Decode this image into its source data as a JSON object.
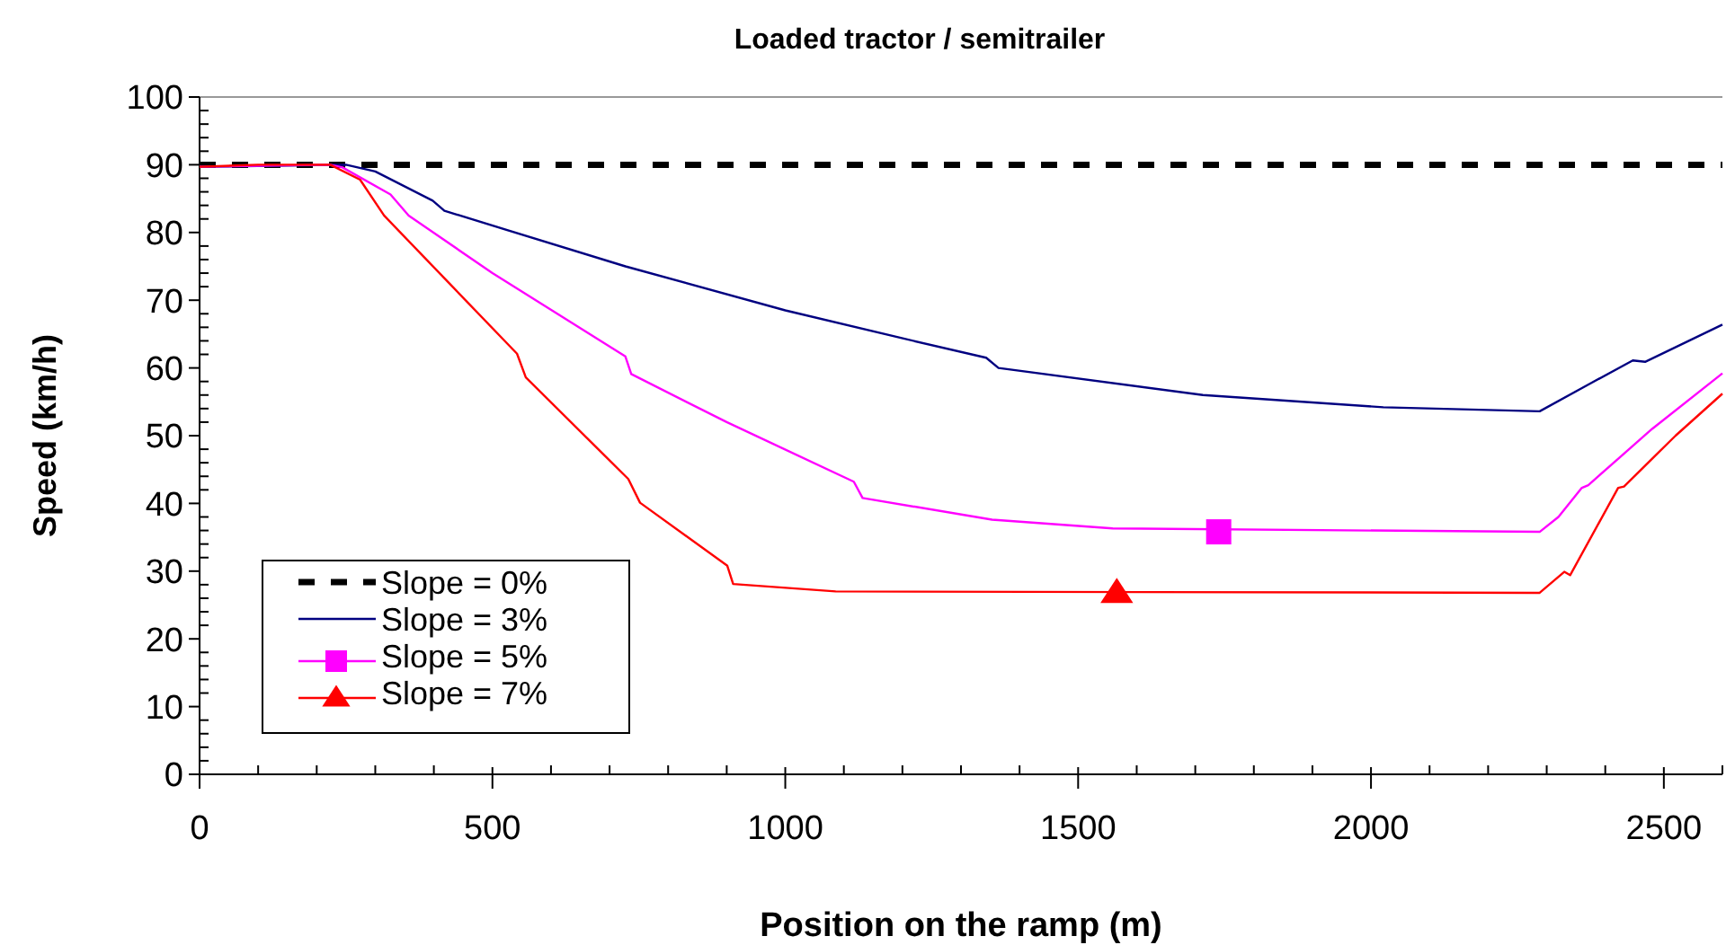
{
  "chart_data": {
    "type": "line",
    "title": "Loaded tractor / semitrailer",
    "xlabel": "Position on the ramp (m)",
    "ylabel": "Speed (km/h)",
    "xlim": [
      0,
      2600
    ],
    "xticks": [
      0,
      500,
      1000,
      1500,
      2000,
      2500
    ],
    "ylim": [
      0,
      100
    ],
    "yticks": [
      0,
      10,
      20,
      30,
      40,
      50,
      60,
      70,
      80,
      90,
      100
    ],
    "grid": false,
    "legend": "bottom left",
    "series": [
      {
        "name": "Slope = 0%",
        "color": "#000000",
        "line_style": "dashed",
        "x": [
          0,
          2600
        ],
        "values": [
          90,
          90
        ]
      },
      {
        "name": "Slope = 3%",
        "color": "#000080",
        "line_style": "solid",
        "x": [
          0,
          250,
          300,
          398,
          418,
          727,
          1000,
          1199,
          1343,
          1364,
          1713,
          2021,
          2288,
          2370,
          2447,
          2468,
          2600
        ],
        "values": [
          89.7,
          90,
          89,
          84.7,
          83.2,
          75,
          68.5,
          64.4,
          61.5,
          60,
          56,
          54.2,
          53.6,
          57.5,
          61.1,
          60.9,
          66.4
        ]
      },
      {
        "name": "Slope = 5%",
        "color": "#ff00ff",
        "line_style": "solid",
        "x": [
          0,
          223,
          244,
          326,
          357,
          500,
          727,
          737,
          900,
          1117,
          1132,
          1353,
          1559,
          2288,
          2320,
          2360,
          2371,
          2480,
          2600
        ],
        "values": [
          89.7,
          90,
          89.6,
          85.6,
          82.5,
          74,
          61.7,
          59.1,
          52,
          43.2,
          40.8,
          37.6,
          36.3,
          35.8,
          38,
          42.3,
          42.7,
          51,
          59.2
        ]
      },
      {
        "type": "scatter",
        "color": "#ff00ff",
        "marker": "square",
        "x": [
          1740
        ],
        "values": [
          35.8
        ]
      },
      {
        "name": "Slope = 7%",
        "color": "#ff0000",
        "line_style": "solid",
        "x": [
          0,
          100,
          223,
          274,
          315,
          542,
          557,
          732,
          752,
          901,
          911,
          1086,
          2288,
          2330,
          2340,
          2422,
          2432,
          2520,
          2600
        ],
        "values": [
          89.7,
          90,
          90,
          87.8,
          82.5,
          62.1,
          58.6,
          43.6,
          40.1,
          30.8,
          28.1,
          27,
          26.8,
          29.9,
          29.4,
          42.3,
          42.5,
          50,
          56.2
        ]
      },
      {
        "type": "scatter",
        "color": "#ff0000",
        "marker": "triangle",
        "x": [
          1566
        ],
        "values": [
          26.8
        ]
      }
    ]
  }
}
